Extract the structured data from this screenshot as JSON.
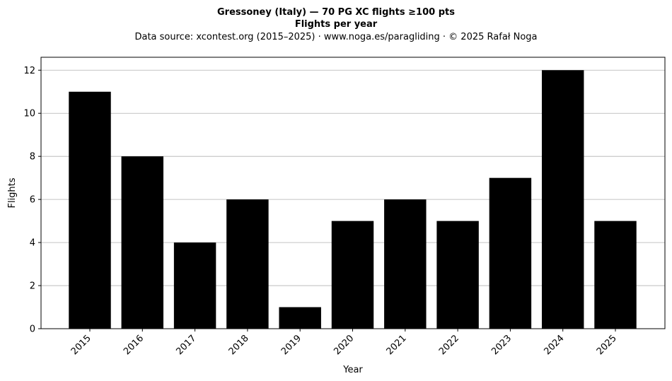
{
  "chart_data": {
    "type": "bar",
    "title": "Gressoney (Italy)  —  70 PG XC flights ≥100 pts",
    "subtitle": "Flights per year",
    "source_line": "Data source: xcontest.org (2015–2025)  ·  www.noga.es/paragliding  ·  © 2025 Rafał Noga",
    "xlabel": "Year",
    "ylabel": "Flights",
    "categories": [
      "2015",
      "2016",
      "2017",
      "2018",
      "2019",
      "2020",
      "2021",
      "2022",
      "2023",
      "2024",
      "2025"
    ],
    "values": [
      11,
      8,
      4,
      6,
      1,
      5,
      6,
      5,
      7,
      12,
      5
    ],
    "ylim": [
      0,
      12.6
    ],
    "yticks": [
      0,
      2,
      4,
      6,
      8,
      10,
      12
    ],
    "grid": "horizontal",
    "bar_color": "#000000",
    "grid_color": "#b0b0b0",
    "legend": "none"
  }
}
